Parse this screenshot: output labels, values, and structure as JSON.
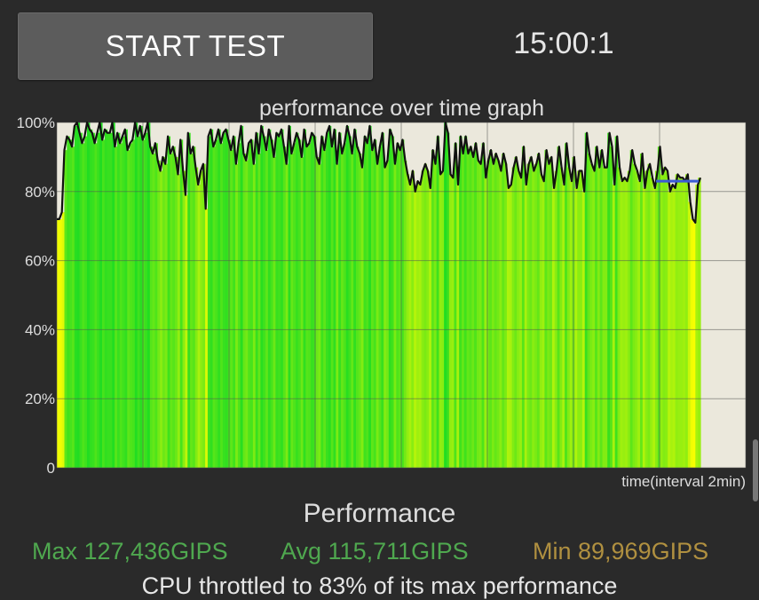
{
  "header": {
    "start_button_label": "START TEST",
    "timer_text": "15:00:1"
  },
  "chart_data": {
    "type": "area",
    "title": "performance over time graph",
    "xlabel": "time(interval 2min)",
    "ylabel": "",
    "y_ticks": [
      "100%",
      "80%",
      "60%",
      "40%",
      "20%",
      "0"
    ],
    "ylim": [
      0,
      100
    ],
    "x_range_minutes": [
      0,
      16
    ],
    "grid": true,
    "bar_color_scale": {
      "low": "#ffff00",
      "high": "#22dd22"
    },
    "line_color": "#111111",
    "target_line": {
      "value": 83,
      "color": "#3b5bd6"
    },
    "series": [
      {
        "values": [
          72,
          72,
          74,
          92,
          96,
          95,
          93,
          99,
          100,
          97,
          94,
          96,
          100,
          98,
          97,
          94,
          97,
          100,
          95,
          98,
          97,
          97,
          100,
          93,
          97,
          94,
          96,
          98,
          92,
          94,
          95,
          100,
          96,
          99,
          95,
          97,
          100,
          93,
          91,
          94,
          89,
          86,
          90,
          88,
          96,
          91,
          93,
          90,
          85,
          95,
          86,
          79,
          97,
          91,
          93,
          87,
          82,
          86,
          88,
          75,
          96,
          98,
          93,
          95,
          98,
          94,
          97,
          98,
          95,
          92,
          96,
          88,
          94,
          99,
          91,
          89,
          94,
          95,
          88,
          97,
          91,
          99,
          96,
          92,
          98,
          95,
          90,
          97,
          96,
          98,
          93,
          88,
          99,
          91,
          94,
          97,
          95,
          90,
          98,
          93,
          94,
          97,
          96,
          90,
          88,
          96,
          92,
          97,
          99,
          93,
          98,
          88,
          97,
          91,
          94,
          99,
          96,
          91,
          98,
          93,
          91,
          87,
          96,
          94,
          99,
          92,
          95,
          88,
          93,
          97,
          87,
          89,
          98,
          96,
          88,
          94,
          92,
          95,
          89,
          85,
          82,
          86,
          80,
          83,
          82,
          86,
          88,
          86,
          81,
          92,
          88,
          96,
          85,
          86,
          100,
          97,
          85,
          84,
          94,
          82,
          96,
          91,
          96,
          91,
          93,
          90,
          94,
          89,
          88,
          94,
          84,
          89,
          92,
          88,
          91,
          89,
          86,
          91,
          88,
          81,
          82,
          87,
          90,
          86,
          84,
          93,
          82,
          88,
          90,
          86,
          88,
          91,
          85,
          83,
          92,
          88,
          90,
          81,
          86,
          93,
          87,
          82,
          94,
          87,
          83,
          90,
          81,
          86,
          86,
          80,
          97,
          91,
          88,
          86,
          93,
          87,
          92,
          87,
          87,
          97,
          93,
          82,
          96,
          87,
          83,
          84,
          83,
          86,
          92,
          88,
          86,
          83,
          91,
          81,
          86,
          88,
          84,
          81,
          86,
          93,
          85,
          87,
          86,
          80,
          82,
          81,
          85,
          84,
          84,
          83,
          85,
          77,
          72,
          71,
          82,
          84
        ]
      }
    ]
  },
  "summary": {
    "title": "Performance",
    "max": "Max 127,436GIPS",
    "avg": "Avg 115,711GIPS",
    "min": "Min 89,969GIPS",
    "throttle_note": "CPU throttled to 83% of its max performance"
  }
}
